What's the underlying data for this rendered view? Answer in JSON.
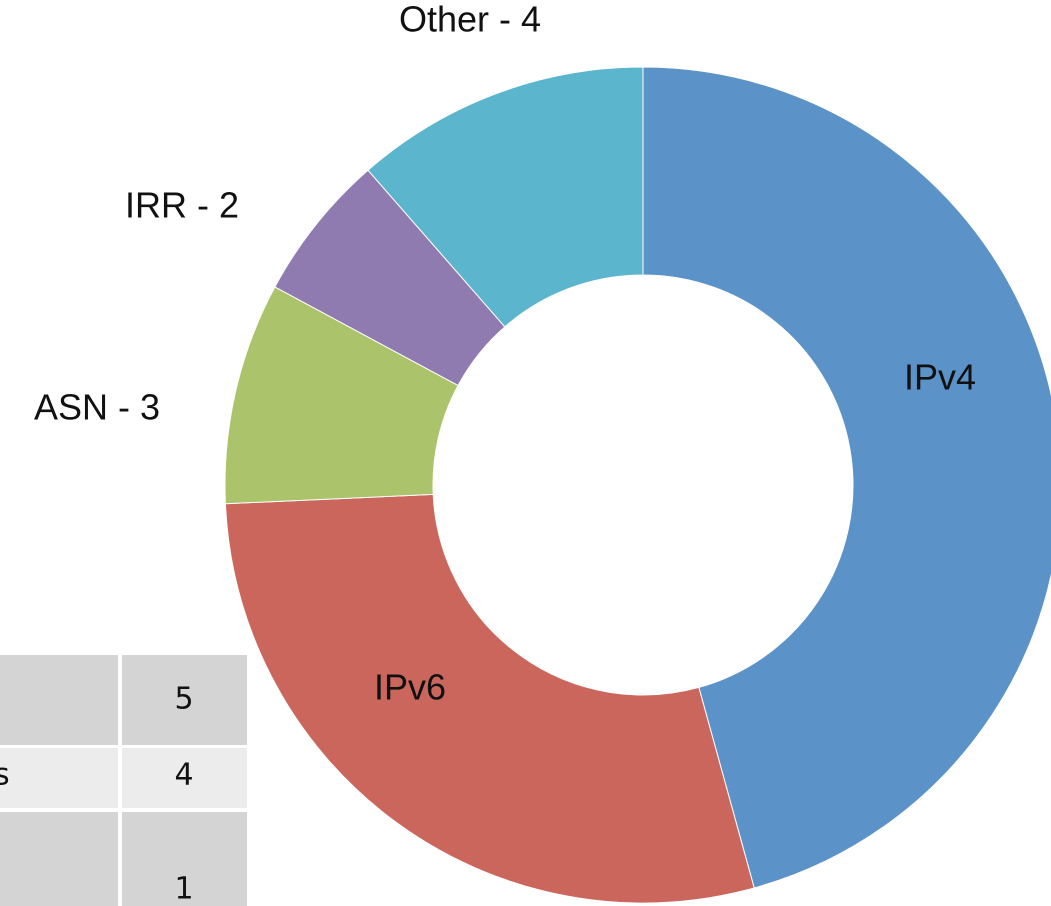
{
  "chart_data": {
    "type": "donut",
    "categories": [
      "IPv4",
      "IPv6",
      "ASN - 3",
      "IRR - 2",
      "Other - 4"
    ],
    "values": [
      16,
      10,
      3,
      2,
      4
    ],
    "colors": [
      "#5b92c7",
      "#cb665d",
      "#abc36a",
      "#8f7bb0",
      "#5bb6cd"
    ]
  },
  "table": {
    "rows": [
      {
        "value": 5
      },
      {
        "label": "s",
        "value": 4
      },
      {
        "value": 1
      }
    ]
  }
}
